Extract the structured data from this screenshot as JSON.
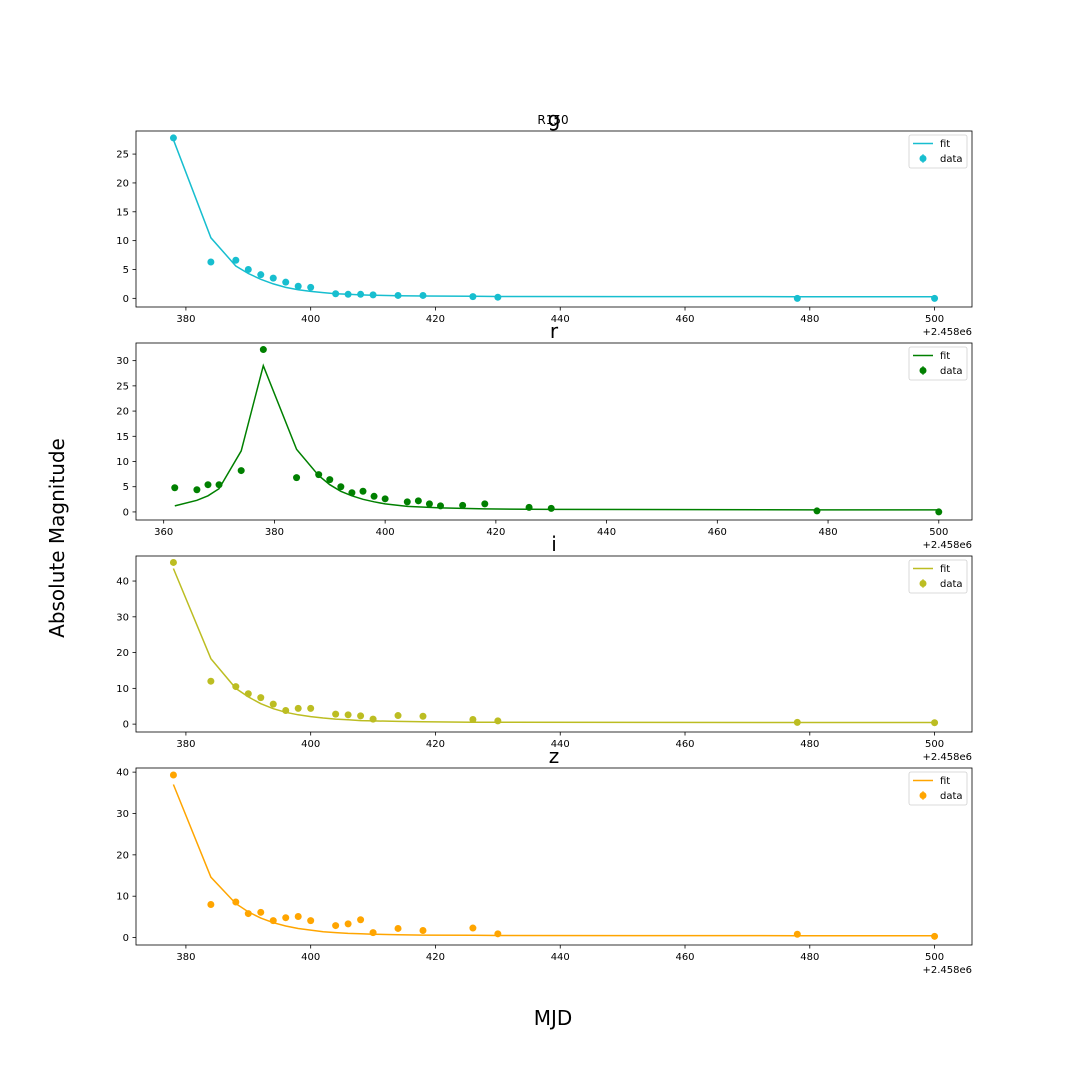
{
  "figure": {
    "suptitle": "R150",
    "xlabel": "MJD",
    "ylabel": "Absolute Magnitude",
    "x_offset_label": "+2.458e6"
  },
  "legend_labels": {
    "fit": "fit",
    "data": "data"
  },
  "chart_data": [
    {
      "type": "scatter",
      "title": "g",
      "color": "#17becf",
      "xlim": [
        372,
        506
      ],
      "ylim": [
        -1.5,
        29
      ],
      "xticks": [
        380,
        400,
        420,
        440,
        460,
        480,
        500
      ],
      "yticks": [
        0,
        5,
        10,
        15,
        20,
        25
      ],
      "legend": "top-right",
      "series": [
        {
          "name": "fit",
          "kind": "line",
          "x": [
            378,
            384,
            388,
            390,
            392,
            394,
            396,
            398,
            400,
            402,
            404,
            406,
            408,
            410,
            414,
            418,
            426,
            430,
            478,
            500
          ],
          "y": [
            27.5,
            10.5,
            5.6,
            4.3,
            3.3,
            2.5,
            1.9,
            1.5,
            1.2,
            1.0,
            0.8,
            0.7,
            0.6,
            0.55,
            0.45,
            0.4,
            0.35,
            0.32,
            0.28,
            0.28
          ]
        },
        {
          "name": "data",
          "kind": "points",
          "x": [
            378,
            384,
            388,
            390,
            392,
            394,
            396,
            398,
            400,
            404,
            406,
            408,
            410,
            414,
            418,
            426,
            430,
            478,
            500
          ],
          "y": [
            27.8,
            6.3,
            6.6,
            5.0,
            4.1,
            3.5,
            2.8,
            2.1,
            1.9,
            0.8,
            0.7,
            0.7,
            0.6,
            0.5,
            0.5,
            0.3,
            0.2,
            0.0,
            0.0
          ]
        }
      ]
    },
    {
      "type": "scatter",
      "title": "r",
      "color": "#008000",
      "xlim": [
        355,
        506
      ],
      "ylim": [
        -1.6,
        33.5
      ],
      "xticks": [
        360,
        380,
        400,
        420,
        440,
        460,
        480,
        500
      ],
      "yticks": [
        0,
        5,
        10,
        15,
        20,
        25,
        30
      ],
      "legend": "top-right",
      "series": [
        {
          "name": "fit",
          "kind": "line",
          "x": [
            362,
            366,
            368,
            370,
            374,
            378,
            384,
            388,
            390,
            392,
            394,
            396,
            398,
            400,
            404,
            410,
            418,
            430,
            478,
            500
          ],
          "y": [
            1.2,
            2.3,
            3.2,
            4.6,
            12.1,
            29.0,
            12.4,
            7.2,
            5.4,
            4.1,
            3.2,
            2.5,
            2.0,
            1.6,
            1.1,
            0.8,
            0.6,
            0.5,
            0.4,
            0.4
          ]
        },
        {
          "name": "data",
          "kind": "points",
          "x": [
            362,
            366,
            368,
            370,
            374,
            378,
            384,
            388,
            390,
            392,
            394,
            396,
            398,
            400,
            404,
            406,
            408,
            410,
            414,
            418,
            426,
            430,
            478,
            500
          ],
          "y": [
            4.8,
            4.4,
            5.4,
            5.4,
            8.2,
            32.2,
            6.8,
            7.4,
            6.4,
            5.0,
            3.8,
            4.1,
            3.1,
            2.6,
            2.0,
            2.2,
            1.6,
            1.2,
            1.3,
            1.6,
            0.9,
            0.7,
            0.2,
            0.0
          ]
        }
      ]
    },
    {
      "type": "scatter",
      "title": "i",
      "color": "#bcbd22",
      "xlim": [
        372,
        506
      ],
      "ylim": [
        -2.2,
        47
      ],
      "xticks": [
        380,
        400,
        420,
        440,
        460,
        480,
        500
      ],
      "yticks": [
        0,
        10,
        20,
        30,
        40
      ],
      "legend": "top-right",
      "series": [
        {
          "name": "fit",
          "kind": "line",
          "x": [
            378,
            384,
            388,
            390,
            392,
            394,
            396,
            398,
            400,
            402,
            404,
            406,
            408,
            410,
            414,
            418,
            426,
            430,
            478,
            500
          ],
          "y": [
            43.5,
            18.3,
            10.0,
            7.6,
            5.7,
            4.3,
            3.3,
            2.6,
            2.1,
            1.7,
            1.4,
            1.2,
            1.0,
            0.9,
            0.75,
            0.65,
            0.55,
            0.5,
            0.45,
            0.45
          ]
        },
        {
          "name": "data",
          "kind": "points",
          "x": [
            378,
            384,
            388,
            390,
            392,
            394,
            396,
            398,
            400,
            404,
            406,
            408,
            410,
            414,
            418,
            426,
            430,
            478,
            500
          ],
          "y": [
            45.2,
            12.0,
            10.5,
            8.5,
            7.4,
            5.6,
            3.8,
            4.4,
            4.4,
            2.8,
            2.6,
            2.3,
            1.4,
            2.4,
            2.2,
            1.3,
            0.9,
            0.5,
            0.4
          ]
        }
      ]
    },
    {
      "type": "scatter",
      "title": "z",
      "color": "#ffa500",
      "xlim": [
        372,
        506
      ],
      "ylim": [
        -1.8,
        41
      ],
      "xticks": [
        380,
        400,
        420,
        440,
        460,
        480,
        500
      ],
      "yticks": [
        0,
        10,
        20,
        30,
        40
      ],
      "legend": "top-right",
      "series": [
        {
          "name": "fit",
          "kind": "line",
          "x": [
            378,
            384,
            388,
            390,
            392,
            394,
            396,
            398,
            400,
            402,
            404,
            406,
            408,
            410,
            414,
            418,
            426,
            430,
            478,
            500
          ],
          "y": [
            37.0,
            14.6,
            8.2,
            6.2,
            4.7,
            3.6,
            2.8,
            2.2,
            1.8,
            1.4,
            1.2,
            1.0,
            0.9,
            0.8,
            0.7,
            0.6,
            0.55,
            0.5,
            0.45,
            0.45
          ]
        },
        {
          "name": "data",
          "kind": "points",
          "x": [
            378,
            384,
            388,
            390,
            392,
            394,
            396,
            398,
            400,
            404,
            406,
            408,
            410,
            414,
            418,
            426,
            430,
            478,
            500
          ],
          "y": [
            39.3,
            8.0,
            8.6,
            5.8,
            6.1,
            4.1,
            4.8,
            5.1,
            4.1,
            2.9,
            3.3,
            4.3,
            1.2,
            2.2,
            1.7,
            2.3,
            0.9,
            0.8,
            0.3
          ]
        }
      ]
    }
  ]
}
